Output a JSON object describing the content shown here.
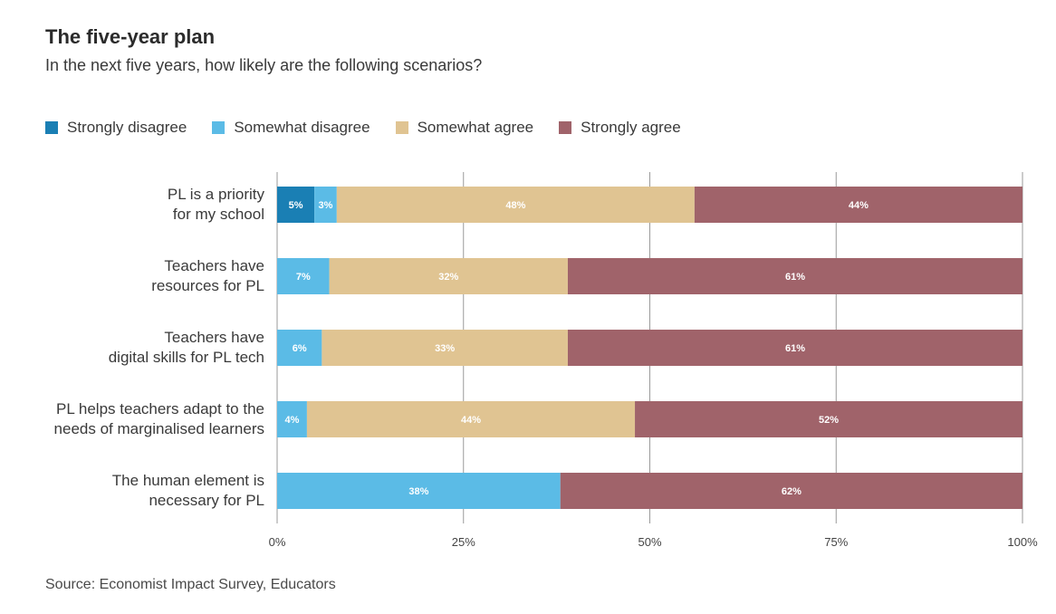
{
  "header": {
    "title": "The five-year plan",
    "subtitle": "In the next five years, how likely are the following scenarios?"
  },
  "source": "Source: Economist Impact Survey, Educators",
  "chart_data": {
    "type": "bar",
    "orientation": "horizontal",
    "stacked": true,
    "categories": [
      [
        "PL is a priority",
        "for my school"
      ],
      [
        "Teachers have",
        "resources for PL"
      ],
      [
        "Teachers have",
        "digital skills for PL tech"
      ],
      [
        "PL helps teachers adapt to the",
        "needs of marginalised learners"
      ],
      [
        "The human element is",
        "necessary for PL"
      ]
    ],
    "series": [
      {
        "name": "Strongly disagree",
        "color": "#1a7fb4",
        "values": [
          5,
          0,
          0,
          0,
          0
        ]
      },
      {
        "name": "Somewhat disagree",
        "color": "#5bbbe6",
        "values": [
          3,
          7,
          6,
          4,
          38
        ]
      },
      {
        "name": "Somewhat agree",
        "color": "#e0c492",
        "values": [
          48,
          32,
          33,
          44,
          0
        ]
      },
      {
        "name": "Strongly agree",
        "color": "#a0636a",
        "values": [
          44,
          61,
          61,
          52,
          62
        ]
      }
    ],
    "data_labels": [
      [
        "5%",
        "3%",
        "48%",
        "44%"
      ],
      [
        "",
        "7%",
        "32%",
        "61%"
      ],
      [
        "",
        "6%",
        "33%",
        "61%"
      ],
      [
        "",
        "4%",
        "44%",
        "52%"
      ],
      [
        "",
        "38%",
        "",
        "62%"
      ]
    ],
    "xlim": [
      0,
      100
    ],
    "xticks": [
      0,
      25,
      50,
      75,
      100
    ],
    "xtick_labels": [
      "0%",
      "25%",
      "50%",
      "75%",
      "100%"
    ],
    "grid": true,
    "legend_position": "top-left"
  }
}
